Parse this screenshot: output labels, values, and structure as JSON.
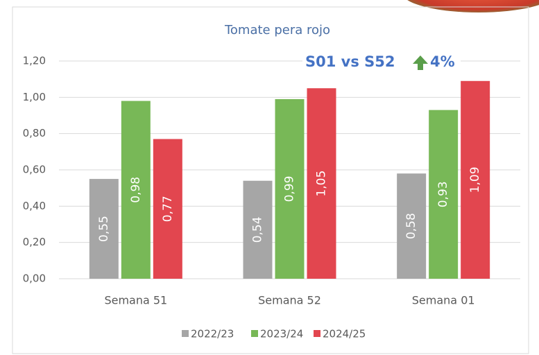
{
  "chart_data": {
    "type": "bar",
    "title": "Tomate pera rojo",
    "annotation": "S01 vs S52",
    "annotation_change": "4%",
    "categories": [
      "Semana 51",
      "Semana 52",
      "Semana 01"
    ],
    "series": [
      {
        "name": "2022/23",
        "color": "#a6a6a6",
        "values": [
          0.55,
          0.54,
          0.58
        ],
        "value_labels": [
          "0,55",
          "0,54",
          "0,58"
        ]
      },
      {
        "name": "2023/24",
        "color": "#78b857",
        "values": [
          0.98,
          0.99,
          0.93
        ],
        "value_labels": [
          "0,98",
          "0,99",
          "0,93"
        ]
      },
      {
        "name": "2024/25",
        "color": "#e2464f",
        "values": [
          0.77,
          1.05,
          1.09
        ],
        "value_labels": [
          "0,77",
          "1,05",
          "1,09"
        ]
      }
    ],
    "ylim": [
      0,
      1.2
    ],
    "yticks": [
      {
        "value": 0,
        "label": "0,00"
      },
      {
        "value": 0.2,
        "label": "0,20"
      },
      {
        "value": 0.4,
        "label": "0,40"
      },
      {
        "value": 0.6,
        "label": "0,60"
      },
      {
        "value": 0.8,
        "label": "0,80"
      },
      {
        "value": 1,
        "label": "1,00"
      },
      {
        "value": 1.2,
        "label": "1,20"
      }
    ],
    "grid": true
  }
}
